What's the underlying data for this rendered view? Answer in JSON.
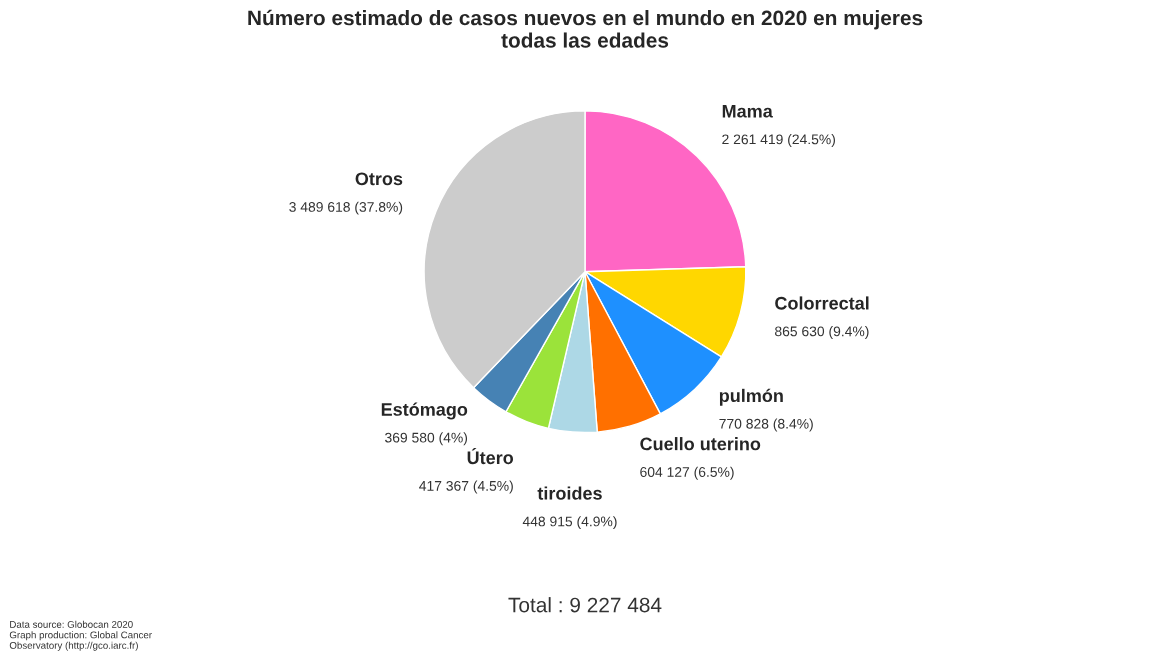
{
  "chart_data": {
    "type": "pie",
    "title": "Número estimado de casos nuevos en el mundo en 2020 en mujeres\ntodas las edades",
    "categories": [
      "Mama",
      "Colorrectal",
      "pulmón",
      "Cuello uterino",
      "tiroides",
      "Útero",
      "Estómago",
      "Otros"
    ],
    "values": [
      2261419,
      865630,
      770828,
      604127,
      448915,
      417367,
      369580,
      3489618
    ],
    "value_labels": [
      "2 261 419 (24.5%)",
      "865 630 (9.4%)",
      "770 828 (8.4%)",
      "604 127 (6.5%)",
      "448 915 (4.9%)",
      "417 367 (4.5%)",
      "369 580 (4%)",
      "3 489 618 (37.8%)"
    ],
    "colors": [
      "#ff66c4",
      "#ffd700",
      "#1e90ff",
      "#ff7000",
      "#add8e6",
      "#9be33a",
      "#4682b4",
      "#cccccc"
    ],
    "annotations": [
      "Total : 9 227 484",
      "Data source: Globocan 2020\nGraph production: Global Cancer\nObservatory (http://gco.iarc.fr)"
    ],
    "legend": false
  }
}
